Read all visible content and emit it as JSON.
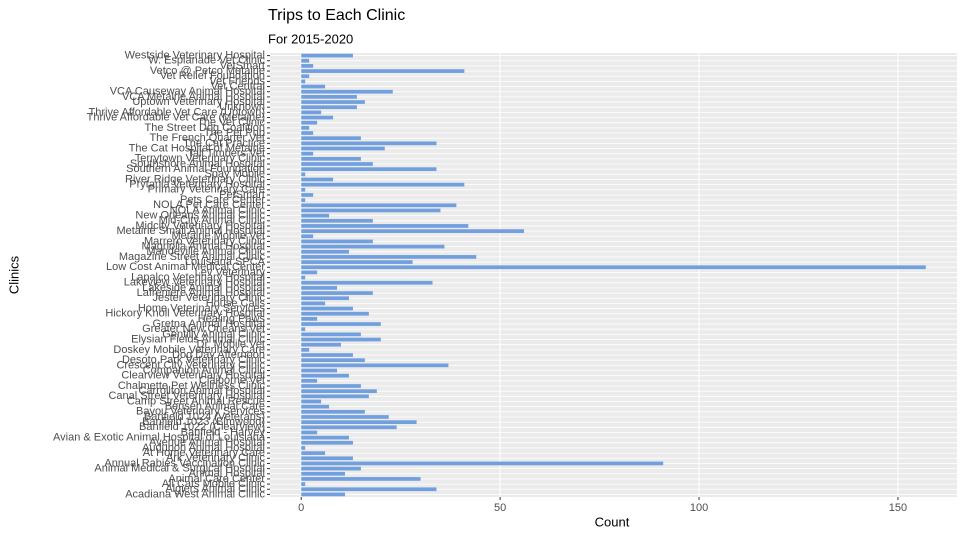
{
  "chart_data": {
    "type": "barh",
    "title": "Trips to Each Clinic",
    "subtitle": "For 2015-2020",
    "x_label": "Count",
    "y_label": "Clinics",
    "color": "#729fde",
    "grid": true,
    "xlim": [
      -7.85,
      164.85
    ],
    "xticks": [
      0,
      50,
      100,
      150
    ],
    "categories": [
      "Westside Veterinary Hospital",
      "W. Esplanade Vet Clinic",
      "VetSmart",
      "Vetco @ Petco Metairie",
      "Vet Relief Foundation",
      "Vet Friends",
      "Vet Central",
      "VCA Causeway Animal Hospital",
      "VCA Metairie Animal Hospital",
      "Uptown Veterinary Hospital",
      "Unknown",
      "Thrive Affordable Vet Care (Uptown)",
      "Thrive Affordable Vet Care (Metairie)",
      "The Vet Clinic",
      "The Street Dog Coalition",
      "The Pet Pub",
      "The French Quarter Vet",
      "The Cat Practice",
      "The Cat Hospital of Metairie",
      "Tall Timbers Vet",
      "Terrytown Veterinary Clinic",
      "Southshore Animal Hospital",
      "Southern Animal Foundation",
      "Spay Mobile",
      "River Ridge Veterinary Clinic",
      "Prytania Veterinary Hospital",
      "Primary Veterinary Care",
      "PetSmart",
      "Pets Care Center",
      "NOLA Pet Care Center",
      "NOLA Animal Clinic",
      "New Orleans Animal Clinic",
      "Mid-City Animal Clinic",
      "Midcity Veterinary Hospital",
      "Metairie Small Animal Hospital",
      "Metairie Mobile Vet",
      "Marrero Veterinary Clinic",
      "Magnolia Animal Hospital",
      "Mandeville Animal Clinic",
      "Magazine Street Animal Clinic",
      "Louisiana SPCA",
      "Low Cost Animal Medical Center",
      "Lev Veterinary",
      "Lapalco Veterinary Hospital",
      "Lakeview Veterinary Hospital",
      "Lakeside Animal Hospital",
      "Lafreniere Animal Hospital",
      "Jester Veterinary Clinic",
      "House Calls",
      "Home Veterinary Services",
      "Hickory Knoll Veterinary Hospital",
      "Healing Paws",
      "Gretna Animal Hospital",
      "Greater New Orleans Vet",
      "Gentilly Animal Clinic",
      "Elysian Fields Animal Clinic",
      "Dr. Mobile Vet",
      "Doskey Mobile Veterinary Care",
      "Dog Day Afternoon",
      "Desoto Park Veterinary Clinic",
      "Crescent City Veterinary Clinic",
      "Companion Animal Clinic",
      "Clearview Veterinary Hospital",
      "Claiborne Vet",
      "Chalmette Pet Wellness Clinic",
      "Carrollton Animal Hospital",
      "Canal Street Veterinary Hospital",
      "Camp Street Animal Rescue",
      "Bensen Animal Care",
      "Bayou Veterinary Services",
      "Banfield 1024 (Veterans)",
      "Banfield 1023 (Elmwood)",
      "Banfield 1022 (Clearview)",
      "Banfield - Harvey",
      "Avian & Exotic Animal Hospital of Louisiana",
      "Avenue Animal Hospital",
      "Audubon Animal Hospital",
      "At Home Veterinary Care",
      "Ark Veterinary Clinic",
      "Annual Rabies Vaccination Clinic",
      "Animal Medical & Surgical Hospital",
      "Animal Hospital",
      "Animal Care Center",
      "All Cats Mobile Clinic",
      "Algiers Animal Clinic",
      "Acadiana West Animal Clinic"
    ],
    "values": [
      13,
      2,
      3,
      41,
      2,
      1,
      6,
      23,
      14,
      16,
      14,
      5,
      8,
      4,
      2,
      3,
      15,
      34,
      21,
      3,
      15,
      18,
      34,
      1,
      8,
      41,
      1,
      3,
      1,
      39,
      35,
      7,
      18,
      42,
      56,
      3,
      18,
      36,
      12,
      44,
      28,
      157,
      4,
      1,
      33,
      9,
      18,
      12,
      6,
      13,
      17,
      4,
      20,
      1,
      15,
      20,
      10,
      2,
      13,
      16,
      37,
      9,
      12,
      4,
      15,
      19,
      17,
      5,
      7,
      16,
      22,
      29,
      24,
      4,
      12,
      13,
      1,
      6,
      13,
      91,
      15,
      11,
      30,
      1,
      34,
      11
    ]
  }
}
